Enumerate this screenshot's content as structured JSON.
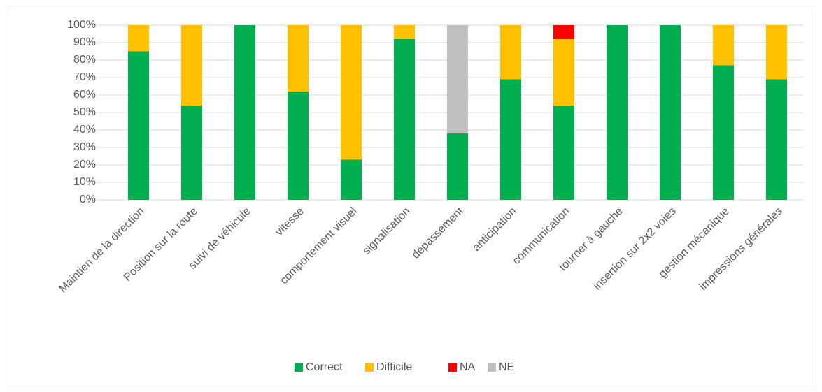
{
  "chart_data": {
    "type": "stacked_bar_100",
    "categories": [
      "Maintien de la direction",
      "Position sur la route",
      "suivi de véhicule",
      "vitesse",
      "comportement visuel",
      "signalisation",
      "dépassement",
      "anticipation",
      "communication",
      "tourner à gauche",
      "insertion sur 2x2 voies",
      "gestion mécanique",
      "impressions générales"
    ],
    "series": [
      {
        "name": "Correct",
        "color": "#00b050",
        "values": [
          85,
          54,
          100,
          62,
          23,
          92,
          38,
          69,
          54,
          100,
          100,
          77,
          69
        ]
      },
      {
        "name": "Difficile",
        "color": "#ffc000",
        "values": [
          15,
          46,
          0,
          38,
          77,
          8,
          0,
          31,
          38,
          0,
          0,
          23,
          31
        ]
      },
      {
        "name": "NA",
        "color": "#ff0000",
        "values": [
          0,
          0,
          0,
          0,
          0,
          0,
          0,
          0,
          8,
          0,
          0,
          0,
          0
        ]
      },
      {
        "name": "NE",
        "color": "#bfbfbf",
        "values": [
          0,
          0,
          0,
          0,
          0,
          0,
          62,
          0,
          0,
          0,
          0,
          0,
          0
        ]
      }
    ],
    "ylim": [
      0,
      100
    ],
    "yticks": [
      {
        "value": 0,
        "label": "0%"
      },
      {
        "value": 10,
        "label": "10%"
      },
      {
        "value": 20,
        "label": "20%"
      },
      {
        "value": 30,
        "label": "30%"
      },
      {
        "value": 40,
        "label": "40%"
      },
      {
        "value": 50,
        "label": "50%"
      },
      {
        "value": 60,
        "label": "60%"
      },
      {
        "value": 70,
        "label": "70%"
      },
      {
        "value": 80,
        "label": "80%"
      },
      {
        "value": 90,
        "label": "90%"
      },
      {
        "value": 100,
        "label": "100%"
      }
    ],
    "grid": true,
    "legend": "bottom"
  }
}
